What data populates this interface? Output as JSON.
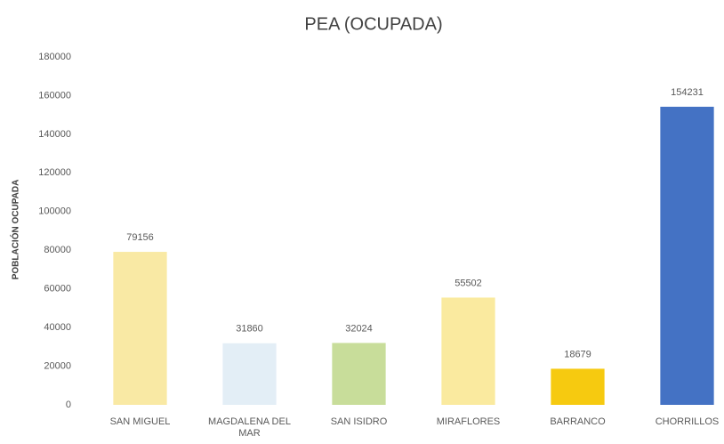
{
  "chart_data": {
    "type": "bar",
    "title": "PEA (OCUPADA)",
    "y_label": "POBLACIÓN OCUPADA",
    "categories": [
      "SAN MIGUEL",
      "MAGDALENA DEL MAR",
      "SAN ISIDRO",
      "MIRAFLORES",
      "BARRANCO",
      "CHORRILLOS"
    ],
    "values": [
      79156,
      31860,
      32024,
      55502,
      18679,
      154231
    ],
    "colors": [
      "#f9e9a4",
      "#e3eef6",
      "#c8dd9a",
      "#faea9f",
      "#f6ca10",
      "#4472c4"
    ],
    "ylim": [
      0,
      180000
    ],
    "yticks": [
      0,
      20000,
      40000,
      60000,
      80000,
      100000,
      120000,
      140000,
      160000,
      180000
    ],
    "grid": false,
    "data_labels": true
  }
}
